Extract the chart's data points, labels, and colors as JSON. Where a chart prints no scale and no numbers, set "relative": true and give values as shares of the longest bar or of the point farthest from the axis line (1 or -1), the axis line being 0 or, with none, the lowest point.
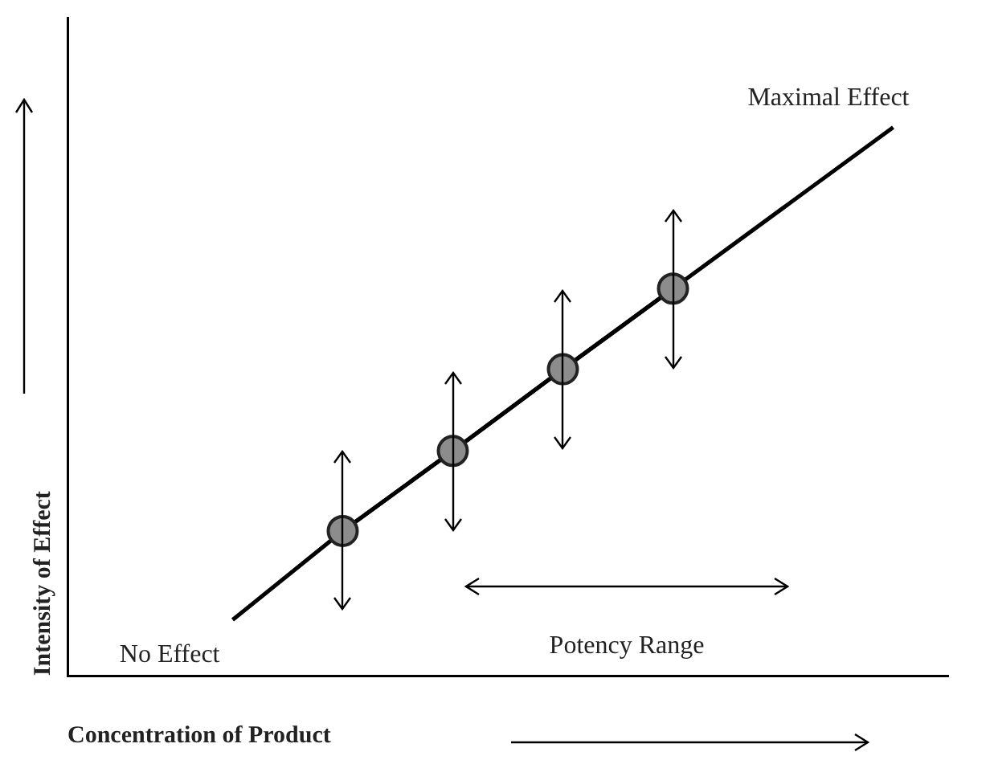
{
  "chart_data": {
    "type": "line",
    "relative": true,
    "xlabel": "Concentration of Product",
    "ylabel": "Intensity of Effect",
    "grid": false,
    "legend": false,
    "categories": [
      null,
      null,
      null,
      null,
      null,
      null,
      null,
      null
    ],
    "series": [
      {
        "color": "#000000",
        "marker": "circle",
        "values": [
          null,
          null,
          0.264,
          0.41,
          0.559,
          0.706,
          null,
          null
        ]
      },
      {
        "color": "#000000",
        "marker": "none",
        "values": [
          null,
          0.102,
          0.264,
          0.41,
          0.559,
          0.706,
          0.853,
          1
        ]
      }
    ],
    "annotations": [
      "No Effect",
      "Maximal Effect",
      "Potency Range"
    ]
  }
}
